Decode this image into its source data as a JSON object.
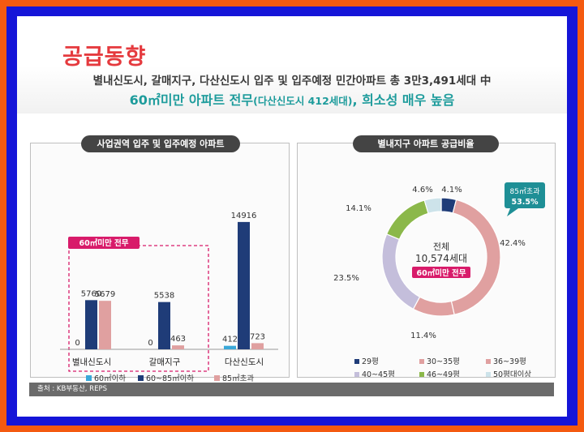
{
  "page": {
    "title": "공급동향",
    "headline_line1": "별내신도시, 갈매지구, 다산신도시 입주 및 입주예정 민간아파트 총 3만3,491세대 中",
    "headline_line2_a": "60㎡미만 아파트 전무",
    "headline_line2_b": "(다산신도시 412세대)",
    "headline_line2_c": ", 희소성 매우 높음",
    "source": "출처 : KB부동산, REPS"
  },
  "colors": {
    "title_red": "#e53a3e",
    "teal": "#1e9c9c",
    "pink": "#d81b6a"
  },
  "chart_data": [
    {
      "type": "bar",
      "title": "사업권역 입주 및 입주예정 아파트",
      "categories": [
        "별내신도시",
        "갈매지구",
        "다산신도시"
      ],
      "series": [
        {
          "name": "60㎡이하",
          "color": "#3aa8d8",
          "values": [
            0,
            0,
            412
          ]
        },
        {
          "name": "60~85㎡이하",
          "color": "#1f3c78",
          "values": [
            5760,
            5538,
            14916
          ]
        },
        {
          "name": "85㎡초과",
          "color": "#e0a0a0",
          "values": [
            5679,
            463,
            723
          ]
        }
      ],
      "annotation": "60㎡미만 전무",
      "legend": "bottom"
    },
    {
      "type": "pie",
      "style": "donut",
      "title": "별내지구 아파트 공급비율",
      "center_label_1": "전체",
      "center_label_2": "10,574세대",
      "center_badge": "60㎡미만 전무",
      "callout_1": "85㎡초과",
      "callout_2": "53.5%",
      "slices": [
        {
          "name": "29평",
          "value": 4.1,
          "label": "4.1%",
          "color": "#1f3c78"
        },
        {
          "name": "30~35평",
          "value": 42.4,
          "label": "42.4%",
          "color": "#e0a0a0"
        },
        {
          "name": "36~39평",
          "value": 11.4,
          "label": "11.4%",
          "color": "#e0a0a0"
        },
        {
          "name": "40~45평",
          "value": 23.5,
          "label": "23.5%",
          "color": "#c4bedb"
        },
        {
          "name": "46~49평",
          "value": 14.1,
          "label": "14.1%",
          "color": "#8bb84a"
        },
        {
          "name": "50평대이상",
          "value": 4.6,
          "label": "4.6%",
          "color": "#cde3ea"
        }
      ],
      "legend": "bottom"
    }
  ]
}
